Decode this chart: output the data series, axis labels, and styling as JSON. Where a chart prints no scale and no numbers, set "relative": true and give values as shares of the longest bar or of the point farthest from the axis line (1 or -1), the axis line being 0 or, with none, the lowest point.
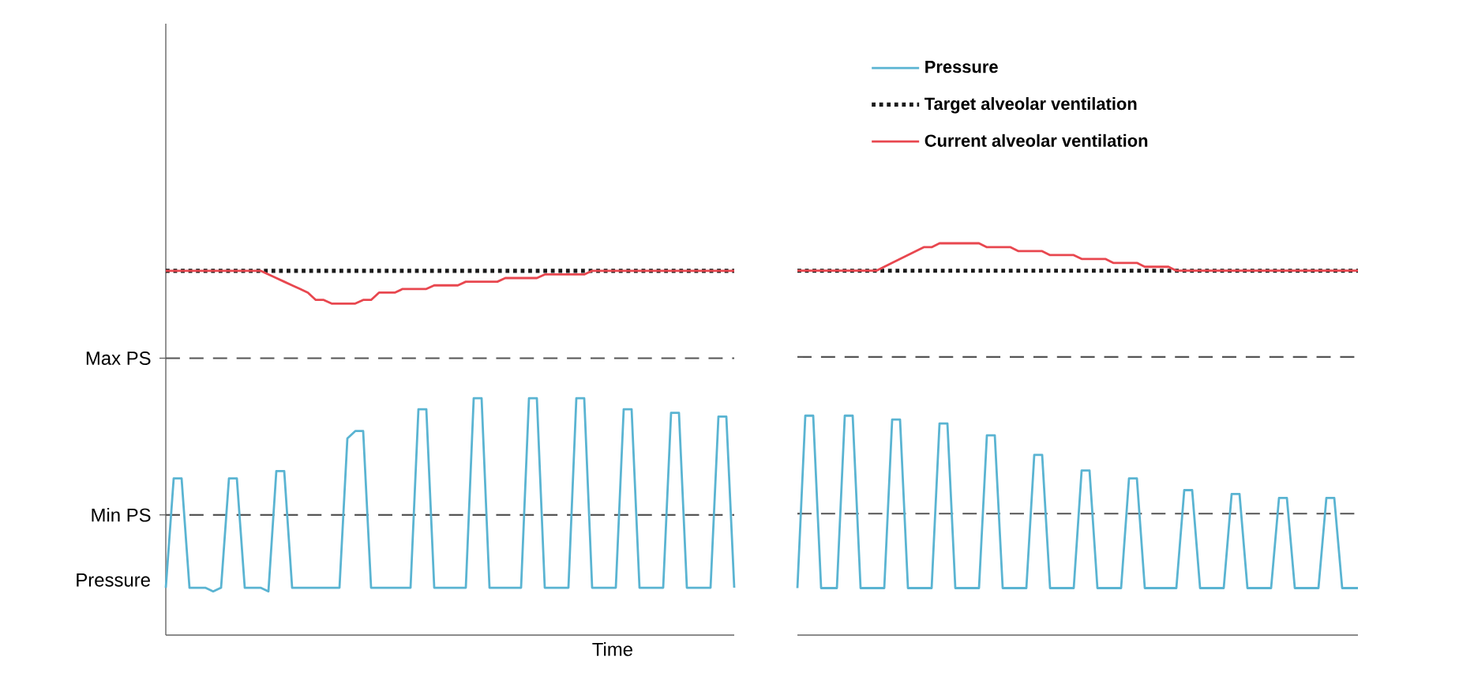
{
  "chart_data": [
    {
      "type": "line",
      "relative": true,
      "xlabel": "Time",
      "ylabel": "Pressure",
      "categories": [
        null,
        null,
        null,
        null,
        null,
        null,
        null,
        null,
        null,
        null,
        null,
        null,
        null,
        null,
        null,
        null,
        null,
        null,
        null,
        null,
        null,
        null,
        null,
        null,
        null,
        null,
        null,
        null,
        null,
        null,
        null,
        null,
        null,
        null,
        null,
        null,
        null,
        null,
        null,
        null,
        null,
        null,
        null,
        null,
        null,
        null,
        null,
        null,
        null,
        null,
        null,
        null,
        null,
        null,
        null,
        null,
        null,
        null,
        null,
        null,
        null,
        null,
        null,
        null,
        null,
        null,
        null,
        null,
        null,
        null,
        null,
        null,
        null
      ],
      "ref_lines": [
        {
          "axis": "y",
          "value": 0.76,
          "label": "Max PS",
          "color": "#555555",
          "line_style": "dashed"
        },
        {
          "axis": "y",
          "value": 0.33,
          "label": "Min PS",
          "color": "#555555",
          "line_style": "dashed"
        }
      ],
      "series": [
        {
          "color": "#5ab4d2",
          "line_style": "solid",
          "values": [
            0.13,
            0.43,
            0.43,
            0.13,
            0.13,
            0.13,
            0.12,
            0.13,
            0.43,
            0.43,
            0.13,
            0.13,
            0.13,
            0.12,
            0.45,
            0.45,
            0.13,
            0.13,
            0.13,
            0.13,
            0.13,
            0.13,
            0.13,
            0.54,
            0.56,
            0.56,
            0.13,
            0.13,
            0.13,
            0.13,
            0.13,
            0.13,
            0.62,
            0.62,
            0.13,
            0.13,
            0.13,
            0.13,
            0.13,
            0.65,
            0.65,
            0.13,
            0.13,
            0.13,
            0.13,
            0.13,
            0.65,
            0.65,
            0.13,
            0.13,
            0.13,
            0.13,
            0.65,
            0.65,
            0.13,
            0.13,
            0.13,
            0.13,
            0.62,
            0.62,
            0.13,
            0.13,
            0.13,
            0.13,
            0.61,
            0.61,
            0.13,
            0.13,
            0.13,
            0.13,
            0.6,
            0.6,
            0.13
          ]
        },
        {
          "color": "#1a1a1a",
          "line_style": "dotted",
          "values": [
            1.0,
            1.0,
            1.0,
            1.0,
            1.0,
            1.0,
            1.0,
            1.0,
            1.0,
            1.0,
            1.0,
            1.0,
            1.0,
            1.0,
            1.0,
            1.0,
            1.0,
            1.0,
            1.0,
            1.0,
            1.0,
            1.0,
            1.0,
            1.0,
            1.0,
            1.0,
            1.0,
            1.0,
            1.0,
            1.0,
            1.0,
            1.0,
            1.0,
            1.0,
            1.0,
            1.0,
            1.0,
            1.0,
            1.0,
            1.0,
            1.0,
            1.0,
            1.0,
            1.0,
            1.0,
            1.0,
            1.0,
            1.0,
            1.0,
            1.0,
            1.0,
            1.0,
            1.0,
            1.0,
            1.0,
            1.0,
            1.0,
            1.0,
            1.0,
            1.0,
            1.0,
            1.0,
            1.0,
            1.0,
            1.0,
            1.0,
            1.0,
            1.0,
            1.0,
            1.0,
            1.0,
            1.0,
            1.0
          ]
        },
        {
          "color": "#e8474f",
          "line_style": "solid",
          "values": [
            1.0,
            1.0,
            1.0,
            1.0,
            1.0,
            1.0,
            1.0,
            1.0,
            1.0,
            1.0,
            1.0,
            1.0,
            1.0,
            0.99,
            0.98,
            0.97,
            0.96,
            0.95,
            0.94,
            0.92,
            0.92,
            0.91,
            0.91,
            0.91,
            0.91,
            0.92,
            0.92,
            0.94,
            0.94,
            0.94,
            0.95,
            0.95,
            0.95,
            0.95,
            0.96,
            0.96,
            0.96,
            0.96,
            0.97,
            0.97,
            0.97,
            0.97,
            0.97,
            0.98,
            0.98,
            0.98,
            0.98,
            0.98,
            0.99,
            0.99,
            0.99,
            0.99,
            0.99,
            0.99,
            1.0,
            1.0,
            1.0,
            1.0,
            1.0,
            1.0,
            1.0,
            1.0,
            1.0,
            1.0,
            1.0,
            1.0,
            1.0,
            1.0,
            1.0,
            1.0,
            1.0,
            1.0,
            1.0
          ]
        }
      ]
    },
    {
      "type": "line",
      "relative": true,
      "legend": "top left",
      "categories": [
        null,
        null,
        null,
        null,
        null,
        null,
        null,
        null,
        null,
        null,
        null,
        null,
        null,
        null,
        null,
        null,
        null,
        null,
        null,
        null,
        null,
        null,
        null,
        null,
        null,
        null,
        null,
        null,
        null,
        null,
        null,
        null,
        null,
        null,
        null,
        null,
        null,
        null,
        null,
        null,
        null,
        null,
        null,
        null,
        null,
        null,
        null,
        null,
        null,
        null,
        null,
        null,
        null,
        null,
        null,
        null,
        null,
        null,
        null,
        null,
        null,
        null,
        null,
        null,
        null,
        null,
        null,
        null,
        null,
        null,
        null,
        null
      ],
      "ref_lines": [
        {
          "axis": "y",
          "value": 0.71,
          "color": "#555555",
          "line_style": "dashed"
        },
        {
          "axis": "y",
          "value": 0.31,
          "color": "#555555",
          "line_style": "dashed"
        }
      ],
      "series": [
        {
          "name": "Pressure",
          "color": "#5ab4d2",
          "line_style": "solid",
          "values": [
            0.12,
            0.56,
            0.56,
            0.12,
            0.12,
            0.12,
            0.56,
            0.56,
            0.12,
            0.12,
            0.12,
            0.12,
            0.55,
            0.55,
            0.12,
            0.12,
            0.12,
            0.12,
            0.54,
            0.54,
            0.12,
            0.12,
            0.12,
            0.12,
            0.51,
            0.51,
            0.12,
            0.12,
            0.12,
            0.12,
            0.46,
            0.46,
            0.12,
            0.12,
            0.12,
            0.12,
            0.42,
            0.42,
            0.12,
            0.12,
            0.12,
            0.12,
            0.4,
            0.4,
            0.12,
            0.12,
            0.12,
            0.12,
            0.12,
            0.37,
            0.37,
            0.12,
            0.12,
            0.12,
            0.12,
            0.36,
            0.36,
            0.12,
            0.12,
            0.12,
            0.12,
            0.35,
            0.35,
            0.12,
            0.12,
            0.12,
            0.12,
            0.35,
            0.35,
            0.12,
            0.12,
            0.12
          ]
        },
        {
          "name": "Target alveolar ventilation",
          "color": "#1a1a1a",
          "line_style": "dotted",
          "values": [
            0.93,
            0.93,
            0.93,
            0.93,
            0.93,
            0.93,
            0.93,
            0.93,
            0.93,
            0.93,
            0.93,
            0.93,
            0.93,
            0.93,
            0.93,
            0.93,
            0.93,
            0.93,
            0.93,
            0.93,
            0.93,
            0.93,
            0.93,
            0.93,
            0.93,
            0.93,
            0.93,
            0.93,
            0.93,
            0.93,
            0.93,
            0.93,
            0.93,
            0.93,
            0.93,
            0.93,
            0.93,
            0.93,
            0.93,
            0.93,
            0.93,
            0.93,
            0.93,
            0.93,
            0.93,
            0.93,
            0.93,
            0.93,
            0.93,
            0.93,
            0.93,
            0.93,
            0.93,
            0.93,
            0.93,
            0.93,
            0.93,
            0.93,
            0.93,
            0.93,
            0.93,
            0.93,
            0.93,
            0.93,
            0.93,
            0.93,
            0.93,
            0.93,
            0.93,
            0.93,
            0.93,
            0.93
          ]
        },
        {
          "name": "Current alveolar ventilation",
          "color": "#e8474f",
          "line_style": "solid",
          "values": [
            0.93,
            0.93,
            0.93,
            0.93,
            0.93,
            0.93,
            0.93,
            0.93,
            0.93,
            0.93,
            0.93,
            0.94,
            0.95,
            0.96,
            0.97,
            0.98,
            0.99,
            0.99,
            1.0,
            1.0,
            1.0,
            1.0,
            1.0,
            1.0,
            0.99,
            0.99,
            0.99,
            0.99,
            0.98,
            0.98,
            0.98,
            0.98,
            0.97,
            0.97,
            0.97,
            0.97,
            0.96,
            0.96,
            0.96,
            0.96,
            0.95,
            0.95,
            0.95,
            0.95,
            0.94,
            0.94,
            0.94,
            0.94,
            0.93,
            0.93,
            0.93,
            0.93,
            0.93,
            0.93,
            0.93,
            0.93,
            0.93,
            0.93,
            0.93,
            0.93,
            0.93,
            0.93,
            0.93,
            0.93,
            0.93,
            0.93,
            0.93,
            0.93,
            0.93,
            0.93,
            0.93,
            0.93
          ]
        }
      ]
    }
  ]
}
